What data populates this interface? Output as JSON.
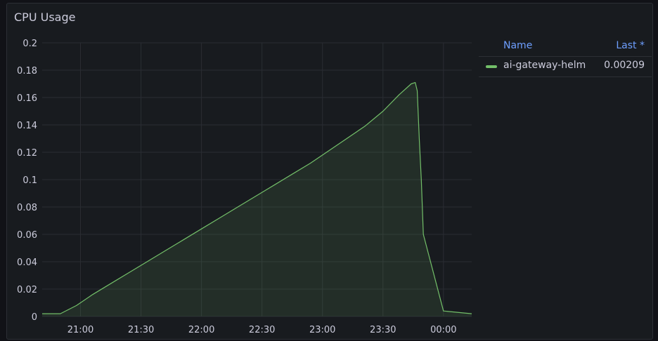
{
  "panel": {
    "title": "CPU Usage"
  },
  "legend": {
    "headers": {
      "name": "Name",
      "last": "Last *"
    },
    "items": [
      {
        "name": "ai-gateway-helm",
        "last": "0.00209",
        "color": "#73bf69"
      }
    ]
  },
  "colors": {
    "series": "#73bf69",
    "grid": "#2a2d33",
    "text": "#ccccdc",
    "header": "#6e9fff"
  },
  "chart_data": {
    "type": "area",
    "y_ticks": [
      "0",
      "0.02",
      "0.04",
      "0.06",
      "0.08",
      "0.1",
      "0.12",
      "0.14",
      "0.16",
      "0.18",
      "0.2"
    ],
    "ylim": [
      0,
      0.2
    ],
    "x_ticks": [
      "21:00",
      "21:30",
      "22:00",
      "22:30",
      "23:00",
      "23:30",
      "00:00"
    ],
    "x_tick_minutes": [
      1260,
      1290,
      1320,
      1350,
      1380,
      1410,
      1440
    ],
    "xlim_minutes": [
      1241,
      1454
    ],
    "grid": true,
    "legend_position": "right",
    "series": [
      {
        "name": "ai-gateway-helm",
        "x_minutes": [
          1241,
          1247,
          1250,
          1258,
          1266,
          1275,
          1284,
          1293,
          1302,
          1311,
          1320,
          1329,
          1338,
          1347,
          1356,
          1365,
          1374,
          1383,
          1392,
          1401,
          1410,
          1418,
          1424,
          1426,
          1427,
          1428,
          1429,
          1430,
          1440,
          1454
        ],
        "y": [
          0.002,
          0.002,
          0.002,
          0.008,
          0.016,
          0.024,
          0.032,
          0.04,
          0.048,
          0.056,
          0.064,
          0.072,
          0.08,
          0.088,
          0.096,
          0.104,
          0.112,
          0.121,
          0.13,
          0.139,
          0.15,
          0.162,
          0.17,
          0.171,
          0.165,
          0.13,
          0.1,
          0.06,
          0.004,
          0.002
        ]
      }
    ]
  }
}
